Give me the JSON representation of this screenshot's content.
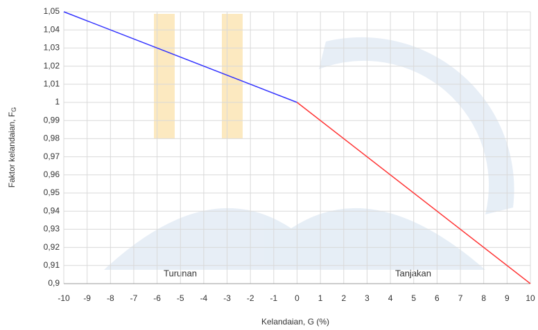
{
  "chart_data": {
    "type": "line",
    "x_label": "Kelandaian, G (%)",
    "y_label": "Faktor kelandaian, F",
    "y_label_subscript": "G",
    "annotations": [
      "Turunan",
      "Tanjakan"
    ],
    "series": [
      {
        "color": "#3333ff",
        "x": [
          -10,
          0
        ],
        "values": [
          1.05,
          1
        ]
      },
      {
        "color": "#ff3333",
        "x": [
          0,
          10
        ],
        "values": [
          1,
          0.9
        ]
      }
    ],
    "xlim": [
      -10,
      10
    ],
    "xticks": [
      -10,
      -9,
      -8,
      -7,
      -6,
      -5,
      -4,
      -3,
      -2,
      -1,
      0,
      1,
      2,
      3,
      4,
      5,
      6,
      7,
      8,
      9,
      10
    ],
    "ylim": [
      0.9,
      1.05
    ],
    "yticks": [
      {
        "value": 0.9,
        "label": "0,9"
      },
      {
        "value": 0.91,
        "label": "0,91"
      },
      {
        "value": 0.92,
        "label": "0,92"
      },
      {
        "value": 0.93,
        "label": "0,93"
      },
      {
        "value": 0.94,
        "label": "0,94"
      },
      {
        "value": 0.95,
        "label": "0,95"
      },
      {
        "value": 0.96,
        "label": "0,96"
      },
      {
        "value": 0.97,
        "label": "0,97"
      },
      {
        "value": 0.98,
        "label": "0,98"
      },
      {
        "value": 0.99,
        "label": "0,99"
      },
      1,
      {
        "value": 1.01,
        "label": "1,01"
      },
      {
        "value": 1.02,
        "label": "1,02"
      },
      {
        "value": 1.03,
        "label": "1,03"
      },
      {
        "value": 1.04,
        "label": "1,04"
      },
      {
        "value": 1.05,
        "label": "1,05"
      }
    ],
    "grid": true
  }
}
